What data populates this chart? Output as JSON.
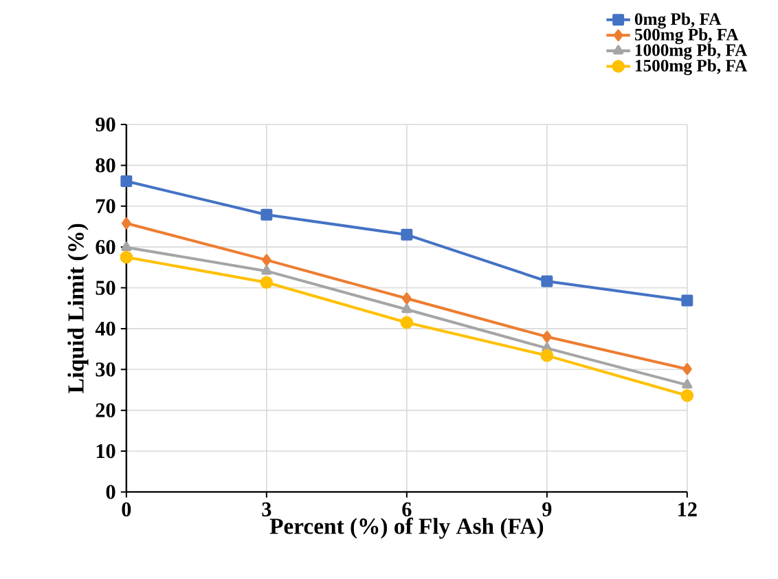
{
  "chart_data": {
    "type": "line",
    "xlabel": "Percent (%) of Fly Ash (FA)",
    "ylabel": "Liquid Limit (%)",
    "x": [
      0,
      3,
      6,
      9,
      12
    ],
    "xlim": [
      0,
      12
    ],
    "xticks": [
      0,
      3,
      6,
      9,
      12
    ],
    "ylim": [
      0,
      90
    ],
    "yticks": [
      0,
      10,
      20,
      30,
      40,
      50,
      60,
      70,
      80,
      90
    ],
    "grid": true,
    "legend": "top right",
    "series": [
      {
        "name": "0mg Pb, FA",
        "color": "#4472c4",
        "marker": "square",
        "values": [
          76.1,
          67.9,
          63.0,
          51.6,
          46.9
        ]
      },
      {
        "name": "500mg Pb, FA",
        "color": "#ed7d31",
        "marker": "diamond",
        "values": [
          65.8,
          56.8,
          47.4,
          38.0,
          30.1
        ]
      },
      {
        "name": "1000mg Pb, FA",
        "color": "#a5a5a5",
        "marker": "triangle",
        "values": [
          59.9,
          54.1,
          44.7,
          35.2,
          26.2
        ]
      },
      {
        "name": "1500mg Pb, FA",
        "color": "#ffc000",
        "marker": "circle",
        "values": [
          57.5,
          51.3,
          41.5,
          33.4,
          23.6
        ]
      }
    ]
  }
}
